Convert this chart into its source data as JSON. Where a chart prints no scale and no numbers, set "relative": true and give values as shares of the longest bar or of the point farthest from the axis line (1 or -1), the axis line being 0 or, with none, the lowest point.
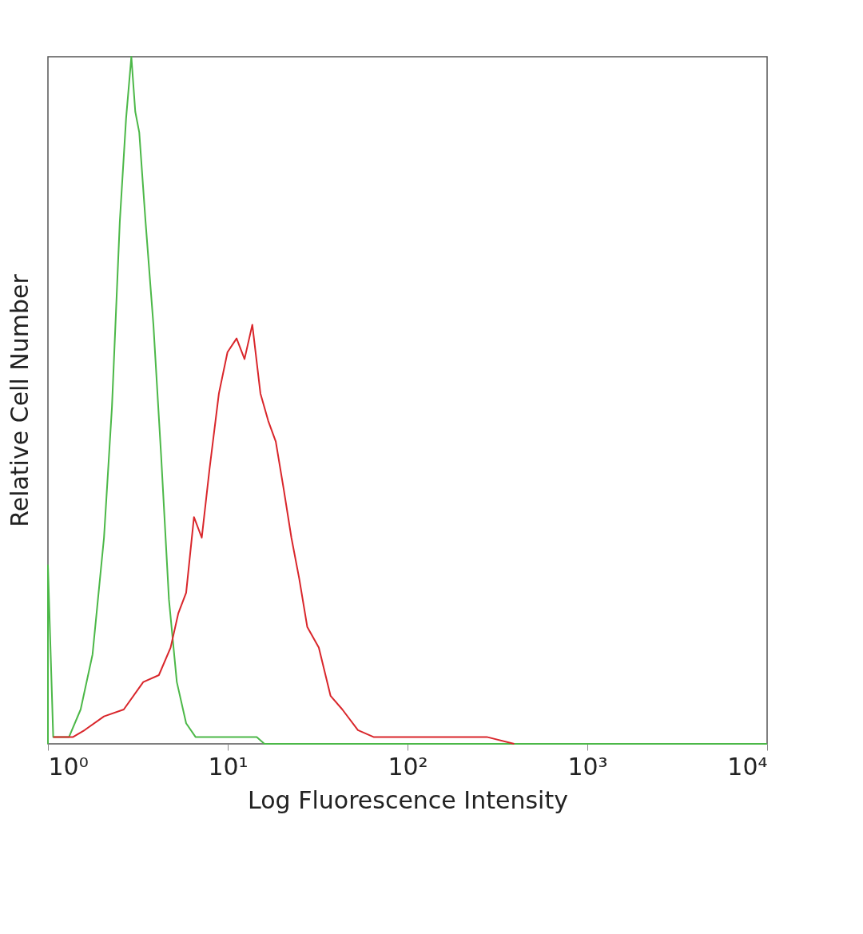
{
  "chart_data": {
    "type": "line",
    "xlabel": "Log Fluorescence Intensity",
    "ylabel": "Relative Cell Number",
    "relative": true,
    "log": "x",
    "grid": false,
    "legend": false,
    "xlim": [
      1,
      10000
    ],
    "xticks": [
      {
        "value": 1,
        "label": "10⁰"
      },
      {
        "value": 10,
        "label": "10¹"
      },
      {
        "value": 100,
        "label": "10²"
      },
      {
        "value": 1000,
        "label": "10³"
      },
      {
        "value": 10000,
        "label": "10⁴"
      }
    ],
    "series": [
      {
        "color": "#4cb848",
        "x": [
          1,
          1,
          1.07,
          1.31,
          1.52,
          1.77,
          2.05,
          2.27,
          2.51,
          2.72,
          2.91,
          3.06,
          3.22,
          3.49,
          3.86,
          4.26,
          4.71,
          5.21,
          5.87,
          6.62,
          7.92,
          10.7,
          14.5,
          16,
          10000
        ],
        "values": [
          0,
          0.26,
          0.01,
          0.01,
          0.05,
          0.13,
          0.3,
          0.49,
          0.76,
          0.91,
          1,
          0.92,
          0.89,
          0.76,
          0.61,
          0.42,
          0.21,
          0.09,
          0.03,
          0.01,
          0.01,
          0.01,
          0.01,
          0,
          0
        ]
      },
      {
        "color": "#d9262b",
        "x": [
          1.07,
          1.38,
          1.6,
          2.05,
          2.64,
          3.39,
          4.14,
          4.81,
          5.31,
          5.87,
          6.49,
          7.17,
          7.92,
          8.93,
          9.97,
          11.2,
          12.4,
          13.7,
          15.2,
          16.8,
          18.5,
          20.5,
          22.6,
          25,
          27.7,
          32.1,
          37.3,
          43.4,
          53,
          64.7,
          96.5,
          176,
          276,
          392
        ],
        "values": [
          0.01,
          0.01,
          0.02,
          0.04,
          0.05,
          0.09,
          0.1,
          0.14,
          0.19,
          0.22,
          0.33,
          0.3,
          0.4,
          0.51,
          0.57,
          0.59,
          0.56,
          0.61,
          0.51,
          0.47,
          0.44,
          0.37,
          0.3,
          0.24,
          0.17,
          0.14,
          0.07,
          0.05,
          0.02,
          0.01,
          0.01,
          0.01,
          0.01,
          0
        ]
      }
    ]
  }
}
